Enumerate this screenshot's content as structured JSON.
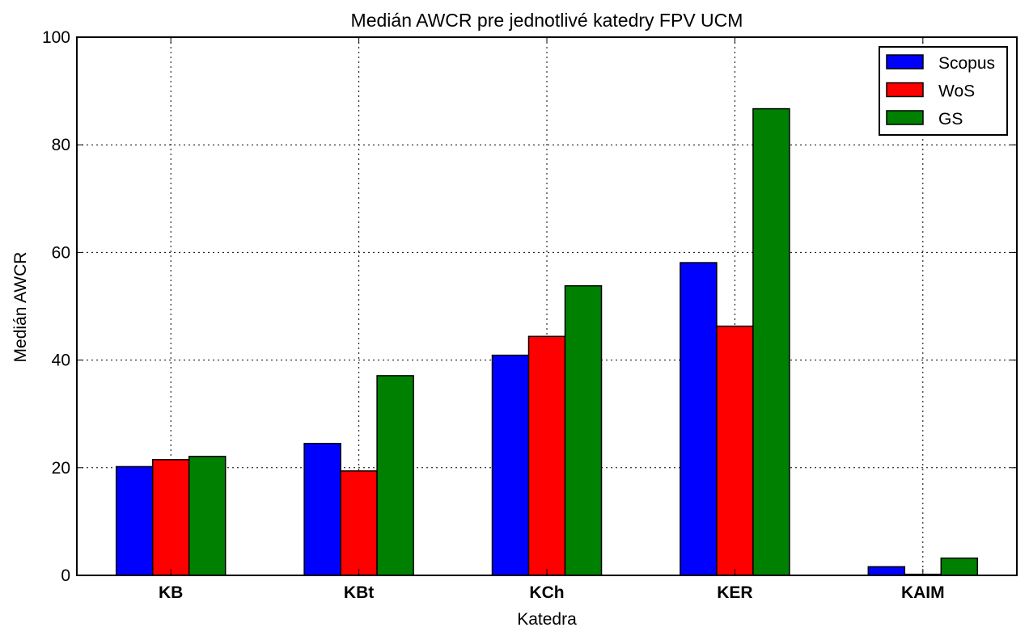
{
  "chart_data": {
    "type": "bar",
    "title": "Medián AWCR pre jednotlivé katedry FPV UCM",
    "xlabel": "Katedra",
    "ylabel": "Medián AWCR",
    "categories": [
      "KB",
      "KBt",
      "KCh",
      "KER",
      "KAIM"
    ],
    "series": [
      {
        "name": "Scopus",
        "color": "#0000ff",
        "values": [
          20.2,
          24.5,
          40.9,
          58.1,
          1.6
        ]
      },
      {
        "name": "WoS",
        "color": "#ff0000",
        "values": [
          21.5,
          19.4,
          44.4,
          46.3,
          0.2
        ]
      },
      {
        "name": "GS",
        "color": "#008000",
        "values": [
          22.1,
          37.1,
          53.8,
          86.7,
          3.2
        ]
      }
    ],
    "ylim": [
      0,
      100
    ],
    "yticks": [
      0,
      20,
      40,
      60,
      80,
      100
    ],
    "grid": true,
    "legend_position": "top-right"
  }
}
